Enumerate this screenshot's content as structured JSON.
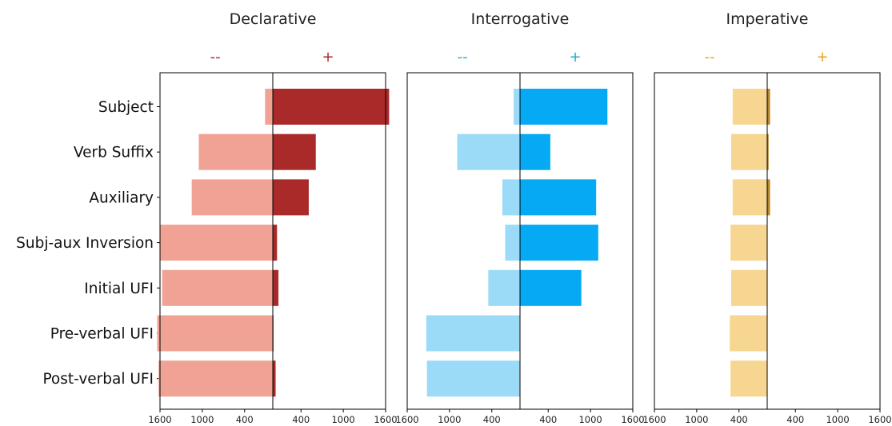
{
  "chart_data": {
    "type": "bar",
    "orientation": "horizontal-diverging",
    "categories": [
      "Subject",
      "Verb Suffix",
      "Auxiliary",
      "Subj-aux Inversion",
      "Initial UFI",
      "Pre-verbal UFI",
      "Post-verbal UFI"
    ],
    "panels": [
      {
        "title": "Declarative",
        "neg_label": "--",
        "pos_label": "+",
        "neg_color": "#f0a394",
        "pos_color": "#aa2a2a",
        "sign_neg_color": "#aa2a2a",
        "sign_pos_color": "#aa2a2a",
        "xlim": [
          -1600,
          1600
        ],
        "ticks": [
          {
            "value": -1600,
            "label": "1600"
          },
          {
            "value": -1000,
            "label": "1000"
          },
          {
            "value": -400,
            "label": "400"
          },
          {
            "value": 400,
            "label": "400"
          },
          {
            "value": 1000,
            "label": "1000"
          },
          {
            "value": 1600,
            "label": "1600"
          }
        ],
        "series": [
          {
            "name": "--",
            "values": [
              110,
              1050,
              1150,
              1600,
              1570,
              1640,
              1620
            ]
          },
          {
            "name": "+",
            "values": [
              1650,
              610,
              510,
              60,
              80,
              10,
              40
            ]
          }
        ]
      },
      {
        "title": "Interrogative",
        "neg_label": "--",
        "pos_label": "+",
        "neg_color": "#9bdbf7",
        "pos_color": "#05a9f4",
        "sign_neg_color": "#1aaed0",
        "sign_pos_color": "#1aaed0",
        "xlim": [
          -1600,
          1600
        ],
        "ticks": [
          {
            "value": -1600,
            "label": "1600"
          },
          {
            "value": -1000,
            "label": "1000"
          },
          {
            "value": -400,
            "label": "400"
          },
          {
            "value": 400,
            "label": "400"
          },
          {
            "value": 1000,
            "label": "1000"
          },
          {
            "value": 1600,
            "label": "1600"
          }
        ],
        "series": [
          {
            "name": "--",
            "values": [
              90,
              890,
              250,
              210,
              450,
              1330,
              1320
            ]
          },
          {
            "name": "+",
            "values": [
              1240,
              430,
              1080,
              1110,
              870,
              0,
              0
            ]
          }
        ]
      },
      {
        "title": "Imperative",
        "neg_label": "--",
        "pos_label": "+",
        "neg_color": "#f6d690",
        "pos_color": "#b3862c",
        "sign_neg_color": "#eaa321",
        "sign_pos_color": "#eaa321",
        "xlim": [
          -1600,
          1600
        ],
        "ticks": [
          {
            "value": -1600,
            "label": "1600"
          },
          {
            "value": -1000,
            "label": "1000"
          },
          {
            "value": -400,
            "label": "400"
          },
          {
            "value": 400,
            "label": "400"
          },
          {
            "value": 1000,
            "label": "1000"
          },
          {
            "value": 1600,
            "label": "1600"
          }
        ],
        "series": [
          {
            "name": "--",
            "values": [
              490,
              510,
              490,
              520,
              510,
              530,
              520
            ]
          },
          {
            "name": "+",
            "values": [
              40,
              20,
              40,
              0,
              0,
              0,
              0
            ]
          }
        ]
      }
    ]
  }
}
